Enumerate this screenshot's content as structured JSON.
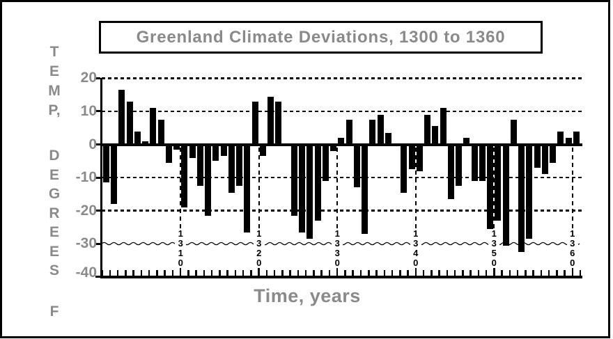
{
  "chart_data": {
    "type": "bar",
    "title": "Greenland Climate Deviations, 1300 to 1360",
    "xlabel": "Time, years",
    "ylabel": "TEMP, DEGREES F",
    "ylabel_stack": [
      [
        "T",
        "E",
        "M",
        "P,"
      ],
      [
        "D",
        "E",
        "G",
        "R",
        "E",
        "E",
        "S"
      ],
      [
        "F"
      ]
    ],
    "year_start": 1300,
    "year_end": 1360,
    "ylim": [
      -40,
      20
    ],
    "yticks": [
      20,
      10,
      0,
      -10,
      -20,
      -30,
      -40
    ],
    "ytick_labels": [
      "20",
      "10",
      "0",
      "-10",
      "-20",
      "-30",
      "-40"
    ],
    "decade_labels": [
      "1310",
      "1320",
      "1330",
      "1340",
      "1350",
      "1360"
    ],
    "grid": {
      "horizontal_dashed_at": [
        20,
        10,
        -10,
        -20
      ],
      "wavy_line_at": -30,
      "zero_baseline": "solid",
      "vertical_dashed_at_decades": true,
      "legend": "none"
    },
    "values": [
      -11.5,
      -18,
      16.5,
      13,
      4,
      1,
      11,
      7.5,
      -5.5,
      -1.5,
      -19,
      -4,
      -12.5,
      -21.5,
      -5,
      -3.5,
      -14.5,
      -12.5,
      -26.5,
      13,
      -3.5,
      14.5,
      13,
      0,
      -21.5,
      -26.5,
      -28.5,
      -23,
      -11,
      -2,
      2,
      7.5,
      -13,
      -27,
      7.5,
      9,
      3.5,
      0,
      -14.5,
      -7.5,
      -8,
      9,
      5.5,
      11,
      -16.5,
      -12.5,
      2,
      -11,
      -11,
      -25.5,
      -23,
      -30.5,
      7.5,
      -32.5,
      -28.5,
      -7,
      -9,
      -5.5,
      4,
      2,
      4
    ],
    "colors": {
      "bars": "#000000",
      "axis": "#000000",
      "text_gray": "#8a8a8a",
      "background": "#ffffff"
    }
  }
}
